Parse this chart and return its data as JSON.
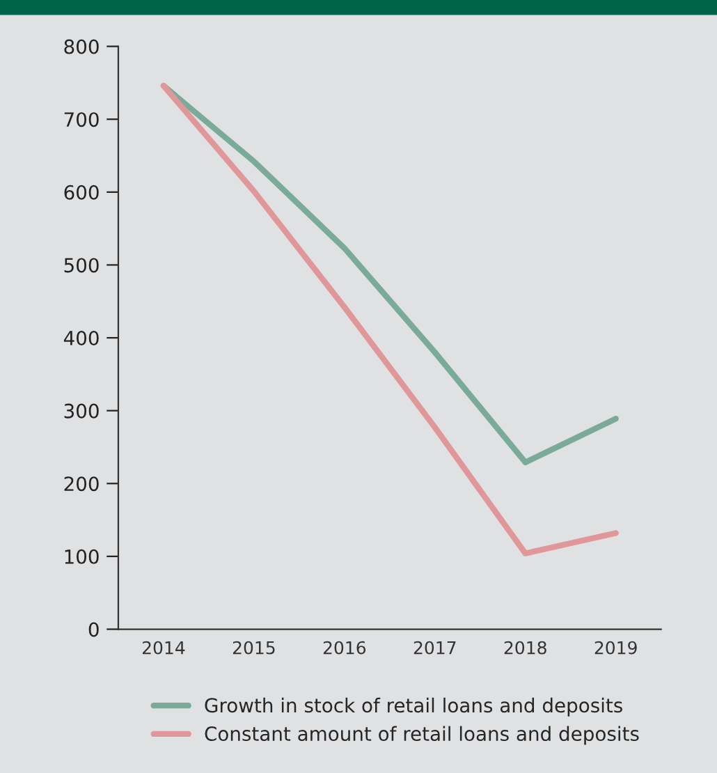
{
  "chart_data": {
    "type": "line",
    "categories": [
      "2014",
      "2015",
      "2016",
      "2017",
      "2018",
      "2019"
    ],
    "series": [
      {
        "name": "Growth in stock of retail loans and deposits",
        "color": "#7aab98",
        "values": [
          746,
          642,
          523,
          380,
          229,
          289
        ]
      },
      {
        "name": "Constant amount of retail loans and deposits",
        "color": "#e0979a",
        "values": [
          746,
          601,
          442,
          277,
          104,
          132
        ]
      }
    ],
    "ylim": [
      0,
      800
    ],
    "yticks": [
      0,
      100,
      200,
      300,
      400,
      500,
      600,
      700,
      800
    ],
    "grid": false,
    "legend": "bottom",
    "marker": "none",
    "line_style": "solid"
  }
}
